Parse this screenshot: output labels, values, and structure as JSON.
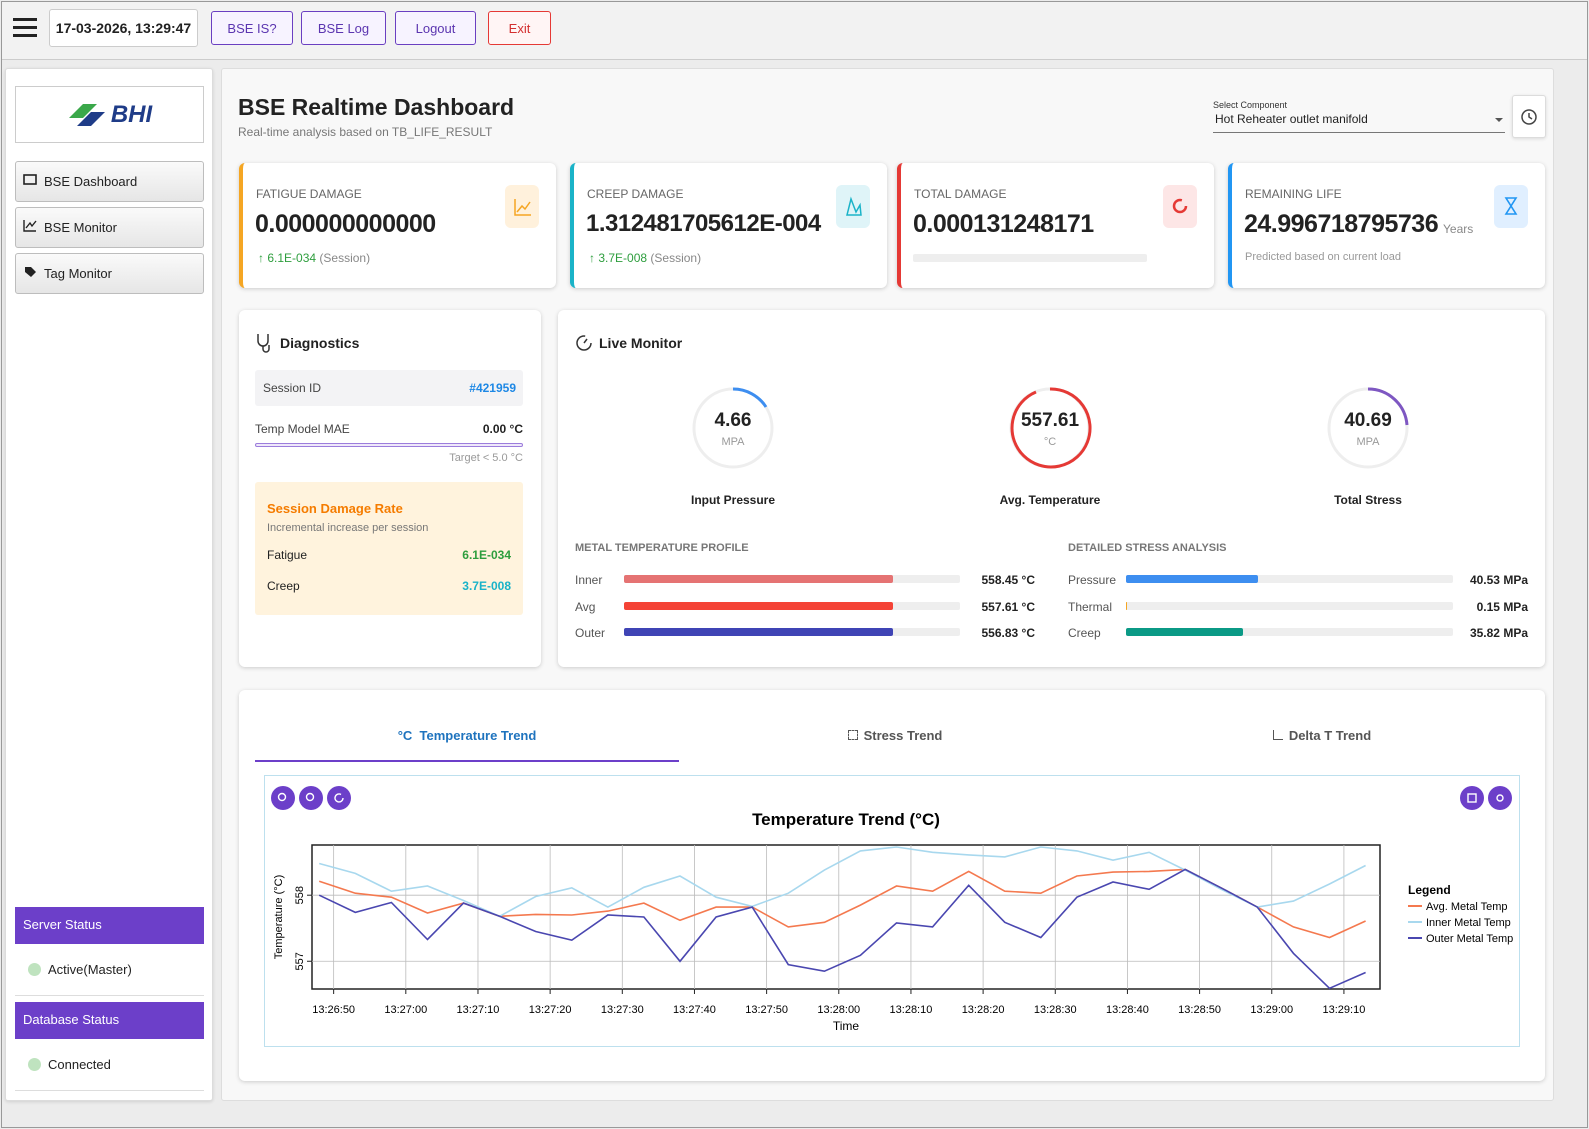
{
  "topbar": {
    "datetime": "17-03-2026, 13:29:47",
    "buttons": [
      "BSE IS?",
      "BSE Log",
      "Logout",
      "Exit"
    ]
  },
  "sidebar": {
    "logo": "BHI",
    "nav": [
      "BSE Dashboard",
      "BSE Monitor",
      "Tag Monitor"
    ],
    "status": [
      {
        "title": "Server Status",
        "value": "Active(Master)"
      },
      {
        "title": "Database Status",
        "value": "Connected"
      }
    ]
  },
  "header": {
    "title": "BSE Realtime Dashboard",
    "subtitle": "Real-time analysis based on TB_LIFE_RESULT",
    "select_label": "Select Component",
    "select_value": "Hot Reheater outlet manifold"
  },
  "cards": [
    {
      "label": "FATIGUE DAMAGE",
      "value": "0.000000000000",
      "delta": "6.1E-034",
      "delta_note": "(Session)"
    },
    {
      "label": "CREEP DAMAGE",
      "value": "1.312481705612E-004",
      "delta": "3.7E-008",
      "delta_note": "(Session)"
    },
    {
      "label": "TOTAL DAMAGE",
      "value": "0.000131248171"
    },
    {
      "label": "REMAINING LIFE",
      "value": "24.996718795736",
      "unit": "Years",
      "note": "Predicted based on current load"
    }
  ],
  "diagnostics": {
    "title": "Diagnostics",
    "session_label": "Session ID",
    "session_id": "#421959",
    "mae_label": "Temp Model MAE",
    "mae_value": "0.00 °C",
    "target": "Target < 5.0 °C",
    "rate_title": "Session Damage Rate",
    "rate_subtitle": "Incremental increase per session",
    "rates": [
      {
        "label": "Fatigue",
        "value": "6.1E-034"
      },
      {
        "label": "Creep",
        "value": "3.7E-008"
      }
    ]
  },
  "live_monitor": {
    "title": "Live Monitor",
    "gauges": [
      {
        "value": "4.66",
        "unit": "MPA",
        "label": "Input Pressure"
      },
      {
        "value": "557.61",
        "unit": "°C",
        "label": "Avg. Temperature"
      },
      {
        "value": "40.69",
        "unit": "MPA",
        "label": "Total Stress"
      }
    ],
    "sections": [
      {
        "title": "METAL TEMPERATURE PROFILE",
        "rows": [
          {
            "label": "Inner",
            "value": "558.45 °C"
          },
          {
            "label": "Avg",
            "value": "557.61 °C"
          },
          {
            "label": "Outer",
            "value": "556.83 °C"
          }
        ]
      },
      {
        "title": "DETAILED STRESS ANALYSIS",
        "rows": [
          {
            "label": "Pressure",
            "value": "40.53 MPa"
          },
          {
            "label": "Thermal",
            "value": "0.15 MPa"
          },
          {
            "label": "Creep",
            "value": "35.82 MPa"
          }
        ]
      }
    ]
  },
  "tabs": [
    {
      "icon": "°C",
      "label": "Temperature Trend"
    },
    {
      "label": "Stress Trend"
    },
    {
      "label": "Delta T Trend"
    }
  ],
  "chart_data": {
    "type": "line",
    "title": "Temperature Trend (°C)",
    "x_label": "Time",
    "y_label": "Temperature (°C)",
    "legend_title": "Legend",
    "legend": "right",
    "grid": true,
    "x": [
      "13:26:48",
      "13:26:53",
      "13:26:58",
      "13:27:03",
      "13:27:08",
      "13:27:13",
      "13:27:18",
      "13:27:23",
      "13:27:28",
      "13:27:33",
      "13:27:38",
      "13:27:43",
      "13:27:48",
      "13:27:53",
      "13:27:58",
      "13:28:03",
      "13:28:08",
      "13:28:13",
      "13:28:18",
      "13:28:23",
      "13:28:28",
      "13:28:33",
      "13:28:38",
      "13:28:43",
      "13:28:48",
      "13:28:53",
      "13:28:58",
      "13:29:03",
      "13:29:08",
      "13:29:13"
    ],
    "xlim": [
      "13:26:47",
      "13:29:15"
    ],
    "xticks": [
      "13:26:50",
      "13:27:00",
      "13:27:10",
      "13:27:20",
      "13:27:30",
      "13:27:40",
      "13:27:50",
      "13:28:00",
      "13:28:10",
      "13:28:20",
      "13:28:30",
      "13:28:40",
      "13:28:50",
      "13:29:00",
      "13:29:10"
    ],
    "ylim": [
      556.58,
      558.76
    ],
    "yticks": [
      557,
      558
    ],
    "series": [
      {
        "name": "Avg. Metal Temp",
        "color": "#f4794f",
        "values": [
          558.21,
          558.03,
          557.97,
          557.73,
          557.88,
          557.68,
          557.71,
          557.7,
          557.76,
          557.88,
          557.62,
          557.82,
          557.82,
          557.52,
          557.59,
          557.85,
          558.14,
          558.06,
          558.36,
          558.06,
          558.03,
          558.29,
          558.35,
          558.36,
          558.39,
          558.11,
          557.82,
          557.52,
          557.36,
          557.61
        ]
      },
      {
        "name": "Inner Metal Temp",
        "color": "#a8d8ee",
        "values": [
          558.48,
          558.33,
          558.06,
          558.14,
          557.92,
          557.68,
          557.98,
          558.11,
          557.82,
          558.12,
          558.29,
          557.97,
          557.83,
          558.03,
          558.38,
          558.67,
          558.73,
          558.65,
          558.61,
          558.58,
          558.73,
          558.67,
          558.53,
          558.65,
          558.38,
          558.09,
          557.82,
          557.91,
          558.17,
          558.45
        ]
      },
      {
        "name": "Outer Metal Temp",
        "color": "#4a47b0",
        "values": [
          558.0,
          557.74,
          557.89,
          557.33,
          557.88,
          557.68,
          557.45,
          557.32,
          557.7,
          557.67,
          557.0,
          557.67,
          557.82,
          556.95,
          556.85,
          557.09,
          557.58,
          557.52,
          558.15,
          557.59,
          557.36,
          557.97,
          558.2,
          558.09,
          558.39,
          558.11,
          557.82,
          557.12,
          556.59,
          556.83
        ]
      }
    ]
  }
}
